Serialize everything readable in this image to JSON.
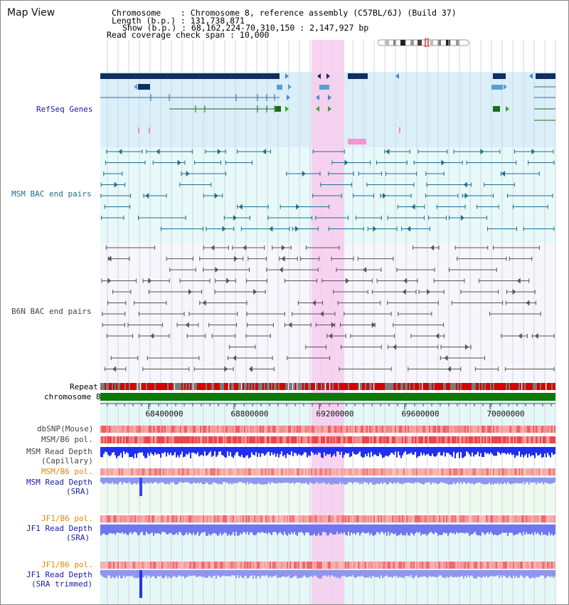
{
  "title": "Map View",
  "info": {
    "chromosome": "Chromosome    : Chromosome 8, reference assembly (C57BL/6J) (Build 37)",
    "length": "Length (b.p.) : 131,738,871",
    "show": "Show (b.p.) : 68,162,224-70,310,150 : 2,147,927 bp",
    "coverage": "Read coverage check span : 10,000"
  },
  "tracks": {
    "refseq": "RefSeq Genes",
    "msm_bac": "MSM BAC end pairs",
    "b6n_bac": "B6N BAC end pairs",
    "repeat": "Repeat",
    "chromosome": "chromosome 8",
    "dbsnp": "dbSNP(Mouse)",
    "msm_b6_pol": "MSM/B6 pol.",
    "msm_depth_cap_1": "MSM Read Depth",
    "msm_depth_cap_2": "(Capillary)",
    "msm_b6_pol_sra": "MSM/B6 pol.",
    "msm_depth_sra_1": "MSM Read Depth",
    "msm_depth_sra_2": "(SRA)",
    "jf1_b6_pol": "JF1/B6 pol.",
    "jf1_depth_sra_1": "JF1 Read Depth",
    "jf1_depth_sra_2": "(SRA)",
    "jf1_b6_pol_trim": "JF1/B6 pol.",
    "jf1_depth_trim_1": "JF1 Read Depth",
    "jf1_depth_trim_2": "(SRA trimmed)"
  },
  "axis": {
    "ticks": [
      "68400000",
      "68800000",
      "69200000",
      "69600000",
      "70000000"
    ]
  },
  "colors": {
    "gene_dark": "#0d2f63",
    "gene_light": "#5aa0d0",
    "msm_pair": "#1f6e8c",
    "b6n_pair": "#555555",
    "highlight": "#f7ccee",
    "chrom_bar": "#0a7a0a",
    "label_blue": "#1a1aa8",
    "label_orange": "#e08a00",
    "label_gray": "#333333"
  }
}
